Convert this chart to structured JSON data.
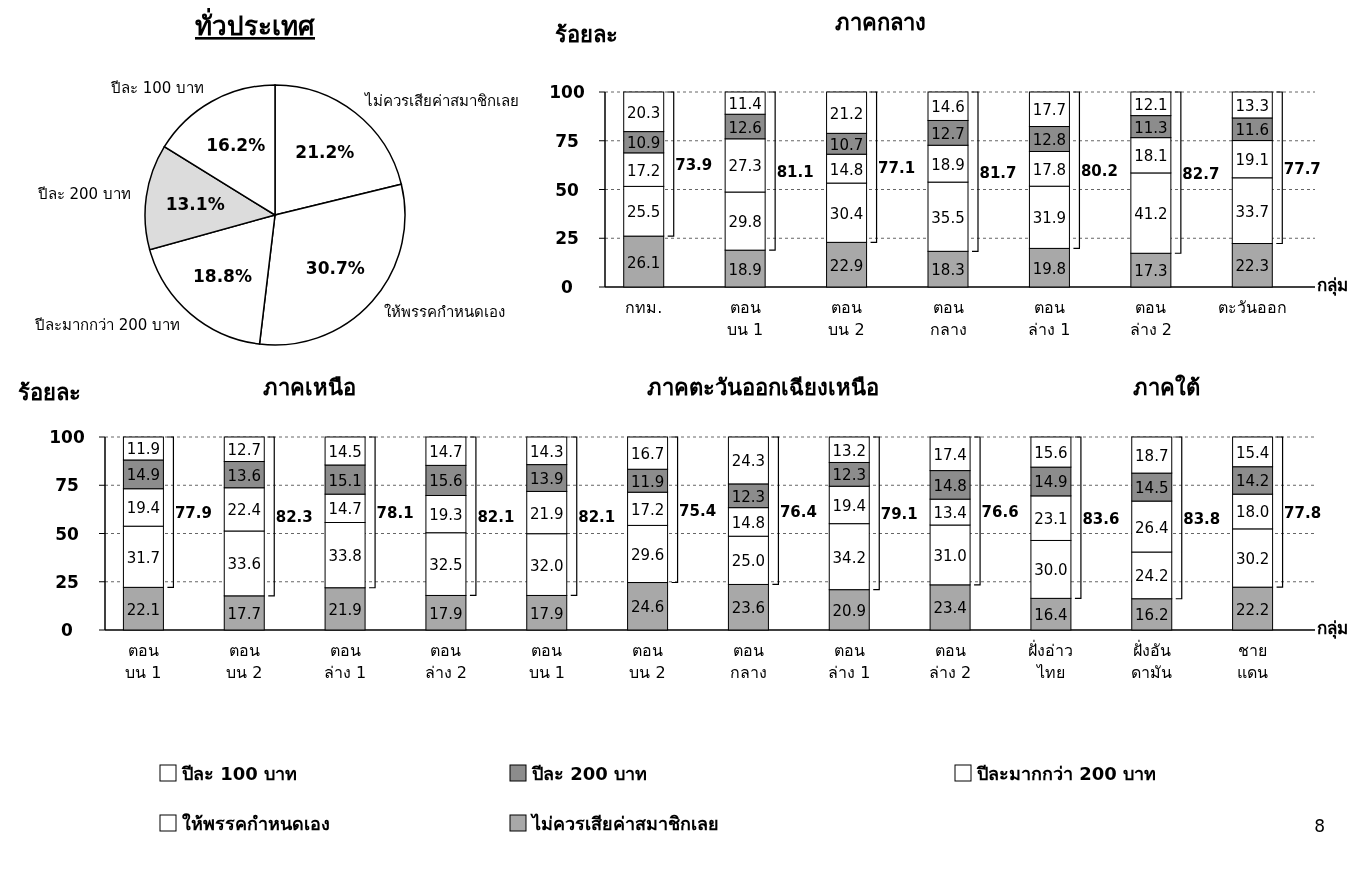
{
  "chart_data": [
    {
      "type": "pie",
      "title": "ทั่วประเทศ",
      "categories": [
        "ไม่ควรเสียค่าสมาชิกเลย",
        "ให้พรรคกำหนดเอง",
        "ปีละมากกว่า 200 บาท",
        "ปีละ 200 บาท",
        "ปีละ 100 บาท"
      ],
      "values": [
        21.2,
        30.7,
        18.8,
        13.1,
        16.2
      ],
      "value_labels": [
        "21.2%",
        "30.7%",
        "18.8%",
        "13.1%",
        "16.2%"
      ],
      "colors": [
        "#ffffff",
        "#ffffff",
        "#ffffff",
        "#dcdcdc",
        "#ffffff"
      ]
    },
    {
      "type": "bar",
      "stacked": true,
      "title": "ภาคกลาง",
      "ylabel": "ร้อยละ",
      "xlabel": "กลุ่ม",
      "categories": [
        "กทม.",
        "ตอน\nบน 1",
        "ตอน\nบน 2",
        "ตอน\nกลาง",
        "ตอน\nล่าง 1",
        "ตอน\nล่าง 2",
        "ตะวันออก"
      ],
      "ylim": [
        0,
        100
      ],
      "yticks": [
        0,
        25,
        50,
        75,
        100
      ],
      "grid": "y",
      "data_labels": true,
      "legend": false,
      "series": [
        {
          "color": "#a8a8a8",
          "values": [
            26.1,
            18.9,
            22.9,
            18.3,
            19.8,
            17.3,
            22.3
          ]
        },
        {
          "color": "#ffffff",
          "values": [
            25.5,
            29.8,
            30.4,
            35.5,
            31.9,
            41.2,
            33.7
          ]
        },
        {
          "color": "#ffffff",
          "values": [
            17.2,
            27.3,
            14.8,
            18.9,
            17.8,
            18.1,
            19.1
          ]
        },
        {
          "color": "#8c8c8c",
          "values": [
            10.9,
            12.6,
            10.7,
            12.7,
            12.8,
            11.3,
            11.6
          ]
        },
        {
          "color": "#ffffff",
          "values": [
            20.3,
            11.4,
            21.2,
            14.6,
            17.7,
            12.1,
            13.3
          ]
        }
      ],
      "annotations": [
        "73.9",
        "81.1",
        "77.1",
        "81.7",
        "80.2",
        "82.7",
        "77.7"
      ]
    },
    {
      "type": "bar",
      "stacked": true,
      "ylabel": "ร้อยละ",
      "xlabel": "กลุ่ม",
      "categories": [
        "ตอน\nบน 1",
        "ตอน\nบน 2",
        "ตอน\nล่าง 1",
        "ตอน\nล่าง 2",
        "ตอน\nบน 1",
        "ตอน\nบน 2",
        "ตอน\nกลาง",
        "ตอน\nล่าง 1",
        "ตอน\nล่าง 2",
        "ฝั่งอ่าว\nไทย",
        "ฝั่งอัน\nดามัน",
        "ชาย\nแดน"
      ],
      "ylim": [
        0,
        100
      ],
      "yticks": [
        0,
        25,
        50,
        75,
        100
      ],
      "grid": "y",
      "data_labels": true,
      "legend": "bottom",
      "series": [
        {
          "name": "ไม่ควรเสียค่าสมาชิกเลย",
          "color": "#a8a8a8",
          "values": [
            22.1,
            17.7,
            21.9,
            17.9,
            17.9,
            24.6,
            23.6,
            20.9,
            23.4,
            16.4,
            16.2,
            22.2
          ]
        },
        {
          "name": "ให้พรรคกำหนดเอง",
          "color": "#ffffff",
          "values": [
            31.7,
            33.6,
            33.8,
            32.5,
            32.0,
            29.6,
            25.0,
            34.2,
            31.0,
            30.0,
            24.2,
            30.2
          ],
          "value_labels": [
            "31.7",
            "33.6",
            "33.8",
            "32.5",
            "32.0",
            "29.6",
            "25.0",
            "34.2",
            "31.0",
            "30.0",
            "24.2",
            "30.2"
          ]
        },
        {
          "name": "ปีละมากกว่า 200 บาท",
          "color": "#ffffff",
          "values": [
            19.4,
            22.4,
            14.7,
            19.3,
            21.9,
            17.2,
            14.8,
            19.4,
            13.4,
            23.1,
            26.4,
            18.0
          ],
          "value_labels": [
            "19.4",
            "22.4",
            "14.7",
            "19.3",
            "21.9",
            "17.2",
            "14.8",
            "19.4",
            "13.4",
            "23.1",
            "26.4",
            "18.0"
          ]
        },
        {
          "name": "ปีละ 200 บาท",
          "color": "#8c8c8c",
          "values": [
            14.9,
            13.6,
            15.1,
            15.6,
            13.9,
            11.9,
            12.3,
            12.3,
            14.8,
            14.9,
            14.5,
            14.2
          ]
        },
        {
          "name": "ปีละ 100 บาท",
          "color": "#ffffff",
          "values": [
            11.9,
            12.7,
            14.5,
            14.7,
            14.3,
            16.7,
            24.3,
            13.2,
            17.4,
            15.6,
            18.7,
            15.4
          ]
        }
      ],
      "annotations": [
        "ภาคเหนือ",
        "ภาคตะวันออกเฉียงเหนือ",
        "ภาคใต้",
        "8",
        "77.9",
        "82.3",
        "78.1",
        "82.1",
        "82.1",
        "75.4",
        "76.4",
        "79.1",
        "76.6",
        "83.6",
        "83.8",
        "77.8"
      ]
    }
  ]
}
